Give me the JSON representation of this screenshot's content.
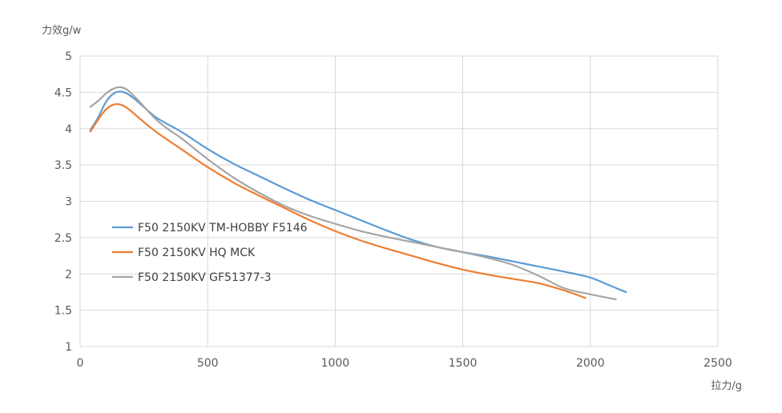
{
  "chart_data": {
    "type": "line",
    "ylabel": "力效g/w",
    "xlabel": "拉力/g",
    "xlim": [
      0,
      2500
    ],
    "ylim": [
      1,
      5
    ],
    "xticks": [
      "0",
      "500",
      "1000",
      "1500",
      "2000",
      "2500"
    ],
    "yticks": [
      "1",
      "1.5",
      "2",
      "2.5",
      "3",
      "3.5",
      "4",
      "4.5",
      "5"
    ],
    "grid": true,
    "legend_position": "center-left",
    "series": [
      {
        "name": "F50 2150KV TM-HOBBY F5146",
        "color": "#5b9bd5",
        "x": [
          40,
          70,
          100,
          130,
          160,
          190,
          230,
          300,
          400,
          500,
          600,
          700,
          800,
          900,
          1000,
          1100,
          1200,
          1300,
          1400,
          1500,
          1600,
          1700,
          1800,
          1900,
          2000,
          2070,
          2140
        ],
        "y": [
          3.98,
          4.15,
          4.36,
          4.48,
          4.51,
          4.47,
          4.36,
          4.15,
          3.95,
          3.72,
          3.52,
          3.35,
          3.18,
          3.02,
          2.88,
          2.74,
          2.6,
          2.47,
          2.37,
          2.3,
          2.24,
          2.17,
          2.1,
          2.03,
          1.95,
          1.85,
          1.75
        ]
      },
      {
        "name": "F50 2150KV HQ MCK",
        "color": "#ed7d31",
        "x": [
          40,
          70,
          100,
          130,
          160,
          190,
          230,
          300,
          400,
          500,
          600,
          700,
          800,
          900,
          1000,
          1100,
          1200,
          1300,
          1400,
          1500,
          1600,
          1700,
          1800,
          1900,
          1980
        ],
        "y": [
          3.96,
          4.12,
          4.26,
          4.33,
          4.33,
          4.27,
          4.15,
          3.95,
          3.71,
          3.47,
          3.26,
          3.08,
          2.91,
          2.74,
          2.59,
          2.46,
          2.35,
          2.25,
          2.15,
          2.06,
          1.99,
          1.93,
          1.87,
          1.77,
          1.67
        ]
      },
      {
        "name": "F50 2150KV GF51377-3",
        "color": "#a5a5a5",
        "x": [
          40,
          70,
          100,
          130,
          160,
          190,
          230,
          300,
          350,
          400,
          500,
          600,
          700,
          800,
          900,
          1000,
          1100,
          1200,
          1300,
          1400,
          1500,
          1600,
          1700,
          1800,
          1900,
          2000,
          2100
        ],
        "y": [
          4.3,
          4.38,
          4.48,
          4.55,
          4.57,
          4.52,
          4.38,
          4.12,
          3.98,
          3.86,
          3.58,
          3.33,
          3.12,
          2.94,
          2.8,
          2.69,
          2.59,
          2.51,
          2.44,
          2.37,
          2.3,
          2.22,
          2.12,
          1.97,
          1.8,
          1.72,
          1.65
        ]
      }
    ]
  }
}
